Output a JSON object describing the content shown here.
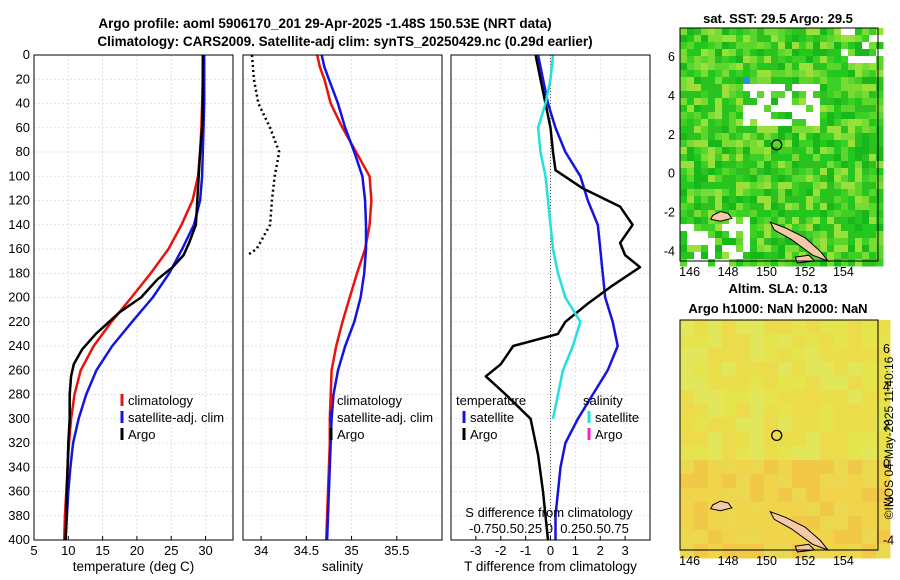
{
  "figure": {
    "title_line1": "Argo profile: aoml 5906170_201 29-Apr-2025 -1.48S 150.53E (NRT data)",
    "title_line2": "Climatology: CARS2009. Satellite-adj clim: synTS_20250429.nc (0.29d earlier)",
    "credit": "©IMOS 04-May-2025 11:40:16"
  },
  "colors": {
    "climatology": "#e8140c",
    "satellite": "#1414e0",
    "argo": "#000000",
    "salinity_satellite": "#22e0e0",
    "salinity_argo": "#ff20c0",
    "grid": "#d9d9d9",
    "land": "#f5c8a6"
  },
  "chart_data": [
    {
      "id": "temperature",
      "type": "line",
      "xlabel": "temperature (deg C)",
      "ylabel": "depth",
      "xlim": [
        5,
        34
      ],
      "ylim": [
        400,
        0
      ],
      "xticks": [
        5,
        10,
        15,
        20,
        25,
        30
      ],
      "yticks": [
        0,
        20,
        40,
        60,
        80,
        100,
        120,
        140,
        160,
        180,
        200,
        220,
        240,
        260,
        280,
        300,
        320,
        340,
        360,
        380,
        400
      ],
      "grid": true,
      "legend": [
        "climatology",
        "satellite-adj. clim",
        "Argo"
      ],
      "series": [
        {
          "name": "climatology",
          "color": "#e8140c",
          "points": [
            [
              29.7,
              0
            ],
            [
              29.6,
              20
            ],
            [
              29.5,
              40
            ],
            [
              29.4,
              60
            ],
            [
              29.2,
              80
            ],
            [
              28.9,
              100
            ],
            [
              28.1,
              120
            ],
            [
              26.5,
              140
            ],
            [
              24.6,
              160
            ],
            [
              22.0,
              180
            ],
            [
              19.2,
              200
            ],
            [
              16.3,
              220
            ],
            [
              13.7,
              240
            ],
            [
              11.8,
              260
            ],
            [
              10.9,
              280
            ],
            [
              10.4,
              300
            ],
            [
              10.1,
              320
            ],
            [
              9.9,
              340
            ],
            [
              9.7,
              360
            ],
            [
              9.5,
              380
            ],
            [
              9.4,
              400
            ]
          ]
        },
        {
          "name": "satellite-adj. clim",
          "color": "#1414e0",
          "points": [
            [
              29.8,
              0
            ],
            [
              29.8,
              20
            ],
            [
              29.8,
              40
            ],
            [
              29.7,
              60
            ],
            [
              29.6,
              80
            ],
            [
              29.5,
              100
            ],
            [
              29.2,
              120
            ],
            [
              28.3,
              140
            ],
            [
              26.6,
              160
            ],
            [
              24.7,
              180
            ],
            [
              22.3,
              200
            ],
            [
              19.3,
              220
            ],
            [
              16.4,
              240
            ],
            [
              14.1,
              260
            ],
            [
              12.6,
              280
            ],
            [
              11.5,
              300
            ],
            [
              10.7,
              320
            ],
            [
              10.3,
              340
            ],
            [
              10.0,
              360
            ],
            [
              9.8,
              380
            ],
            [
              9.6,
              400
            ]
          ]
        },
        {
          "name": "Argo",
          "color": "#000000",
          "points": [
            [
              29.6,
              0
            ],
            [
              29.6,
              20
            ],
            [
              29.6,
              40
            ],
            [
              29.5,
              60
            ],
            [
              29.2,
              80
            ],
            [
              29.0,
              100
            ],
            [
              28.8,
              120
            ],
            [
              28.6,
              140
            ],
            [
              27.6,
              155
            ],
            [
              26.8,
              165
            ],
            [
              25.2,
              175
            ],
            [
              23.0,
              185
            ],
            [
              20.6,
              200
            ],
            [
              17.5,
              212
            ],
            [
              14.0,
              230
            ],
            [
              12.0,
              243
            ],
            [
              10.8,
              255
            ],
            [
              10.4,
              265
            ],
            [
              10.2,
              280
            ],
            [
              10.2,
              300
            ],
            [
              10.0,
              320
            ],
            [
              9.9,
              340
            ],
            [
              9.8,
              360
            ],
            [
              9.7,
              380
            ],
            [
              9.6,
              400
            ]
          ]
        }
      ]
    },
    {
      "id": "salinity",
      "type": "line",
      "xlabel": "salinity",
      "xlim": [
        33.8,
        36.0
      ],
      "ylim": [
        400,
        0
      ],
      "xticks": [
        34,
        34.5,
        35,
        35.5
      ],
      "grid": true,
      "legend": [
        "climatology",
        "satellite-adj. clim",
        "Argo"
      ],
      "series": [
        {
          "name": "climatology",
          "color": "#e8140c",
          "points": [
            [
              34.62,
              0
            ],
            [
              34.65,
              10
            ],
            [
              34.7,
              20
            ],
            [
              34.77,
              40
            ],
            [
              34.9,
              60
            ],
            [
              35.05,
              80
            ],
            [
              35.2,
              100
            ],
            [
              35.22,
              120
            ],
            [
              35.2,
              140
            ],
            [
              35.15,
              160
            ],
            [
              35.06,
              180
            ],
            [
              34.98,
              200
            ],
            [
              34.9,
              220
            ],
            [
              34.83,
              240
            ],
            [
              34.78,
              260
            ],
            [
              34.77,
              280
            ],
            [
              34.76,
              300
            ],
            [
              34.76,
              320
            ],
            [
              34.75,
              340
            ],
            [
              34.74,
              360
            ],
            [
              34.73,
              380
            ],
            [
              34.72,
              400
            ]
          ]
        },
        {
          "name": "satellite-adj. clim",
          "color": "#1414e0",
          "points": [
            [
              34.67,
              0
            ],
            [
              34.7,
              10
            ],
            [
              34.75,
              20
            ],
            [
              34.8,
              30
            ],
            [
              34.85,
              40
            ],
            [
              34.93,
              60
            ],
            [
              35.03,
              80
            ],
            [
              35.12,
              100
            ],
            [
              35.15,
              120
            ],
            [
              35.16,
              140
            ],
            [
              35.16,
              160
            ],
            [
              35.14,
              180
            ],
            [
              35.1,
              200
            ],
            [
              35.03,
              220
            ],
            [
              34.93,
              240
            ],
            [
              34.85,
              260
            ],
            [
              34.8,
              280
            ],
            [
              34.78,
              300
            ],
            [
              34.77,
              320
            ],
            [
              34.76,
              340
            ],
            [
              34.75,
              360
            ],
            [
              34.74,
              380
            ],
            [
              34.73,
              400
            ]
          ]
        },
        {
          "name": "Argo",
          "color": "#000000",
          "points": []
        }
      ]
    },
    {
      "id": "differences",
      "type": "line",
      "xlabel": "T difference from climatology",
      "top_label": "S difference from climatology",
      "xlim": [
        -4,
        4
      ],
      "ylim": [
        400,
        0
      ],
      "xticks": [
        -3,
        -2,
        -1,
        0,
        1,
        2,
        3
      ],
      "secondary_xticks": [
        -0.75,
        -0.5,
        -0.25,
        0,
        0.25,
        0.5,
        0.75
      ],
      "secondary_tick_labels": "-0.750.50.25 0  0.250.50.75",
      "grid": true,
      "legend_left_title": "temperature",
      "legend_right_title": "salinity",
      "legend_left": [
        "satellite",
        "Argo"
      ],
      "legend_right": [
        "satellite",
        "Argo"
      ],
      "series": [
        {
          "name": "temperature satellite",
          "color": "#1414e0",
          "points": [
            [
              -0.5,
              0
            ],
            [
              -0.3,
              20
            ],
            [
              -0.1,
              40
            ],
            [
              0.2,
              60
            ],
            [
              0.6,
              80
            ],
            [
              1.2,
              100
            ],
            [
              1.5,
              120
            ],
            [
              1.9,
              140
            ],
            [
              2.0,
              160
            ],
            [
              2.1,
              180
            ],
            [
              2.2,
              200
            ],
            [
              2.5,
              220
            ],
            [
              2.7,
              240
            ],
            [
              2.3,
              260
            ],
            [
              1.7,
              280
            ],
            [
              1.1,
              300
            ],
            [
              0.6,
              320
            ],
            [
              0.4,
              340
            ],
            [
              0.3,
              360
            ],
            [
              0.2,
              380
            ],
            [
              0.2,
              400
            ]
          ]
        },
        {
          "name": "temperature Argo",
          "color": "#000000",
          "points": [
            [
              -0.6,
              0
            ],
            [
              -0.4,
              20
            ],
            [
              -0.2,
              40
            ],
            [
              0.0,
              60
            ],
            [
              0.1,
              80
            ],
            [
              0.2,
              95
            ],
            [
              1.3,
              110
            ],
            [
              2.8,
              125
            ],
            [
              3.3,
              140
            ],
            [
              2.8,
              155
            ],
            [
              3.0,
              165
            ],
            [
              3.6,
              175
            ],
            [
              2.5,
              190
            ],
            [
              1.5,
              205
            ],
            [
              0.6,
              220
            ],
            [
              0.3,
              230
            ],
            [
              -1.5,
              240
            ],
            [
              -2.0,
              255
            ],
            [
              -2.6,
              265
            ],
            [
              -1.8,
              280
            ],
            [
              -0.8,
              300
            ],
            [
              -0.5,
              330
            ],
            [
              -0.3,
              360
            ],
            [
              -0.1,
              400
            ]
          ]
        },
        {
          "name": "salinity satellite",
          "color": "#22e0e0",
          "points": [
            [
              0.1,
              0
            ],
            [
              0.0,
              20
            ],
            [
              -0.2,
              40
            ],
            [
              -0.5,
              60
            ],
            [
              -0.4,
              80
            ],
            [
              -0.2,
              100
            ],
            [
              -0.1,
              120
            ],
            [
              0.0,
              140
            ],
            [
              0.1,
              160
            ],
            [
              0.3,
              180
            ],
            [
              0.6,
              200
            ],
            [
              1.2,
              220
            ],
            [
              0.9,
              240
            ],
            [
              0.5,
              260
            ],
            [
              0.3,
              280
            ],
            [
              0.1,
              300
            ]
          ]
        },
        {
          "name": "salinity Argo",
          "color": "#ff20c0",
          "points": []
        }
      ]
    },
    {
      "id": "sst_map",
      "type": "heatmap",
      "title": "sat. SST: 29.5 Argo: 29.5",
      "xticks": [
        146,
        148,
        150,
        152,
        154
      ],
      "yticks": [
        -4,
        -2,
        0,
        2,
        4,
        6
      ],
      "xlim": [
        145.5,
        155.8
      ],
      "ylim": [
        -4.5,
        7.5
      ],
      "argo_position": [
        150.53,
        -1.48
      ]
    },
    {
      "id": "sla_map",
      "type": "heatmap",
      "title_line1": "Altim. SLA: 0.13",
      "title_line2": "Argo h1000: NaN h2000: NaN",
      "xticks": [
        146,
        148,
        150,
        152,
        154
      ],
      "yticks": [
        -4,
        -2,
        0,
        2,
        4,
        6
      ],
      "xlim": [
        145.5,
        155.8
      ],
      "ylim": [
        -4.5,
        7.5
      ],
      "argo_position": [
        150.53,
        -1.48
      ]
    }
  ]
}
